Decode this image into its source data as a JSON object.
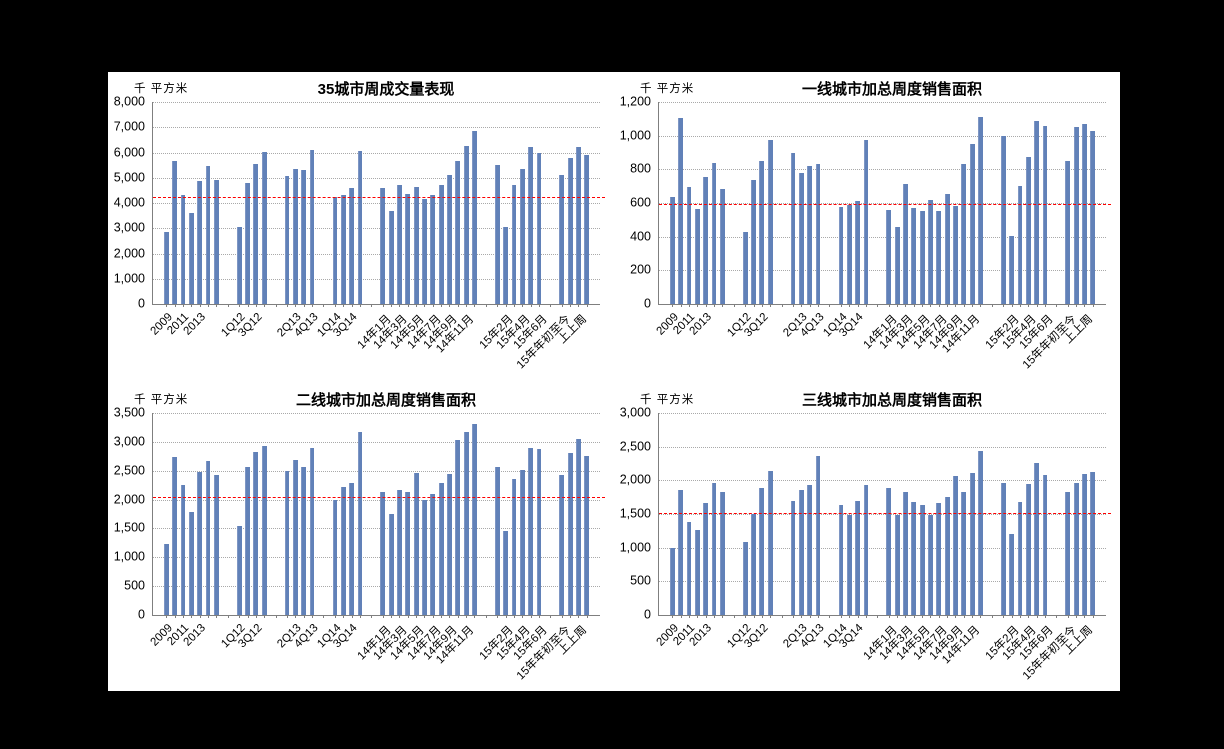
{
  "page": {
    "background": "#000000",
    "canvas_background": "#FFFFFF"
  },
  "colors": {
    "bar": "#6181B8",
    "reference_line": "#FE0000",
    "gridline": "#A9A9A9",
    "axis": "#7F7F7F",
    "text": "#000000"
  },
  "chart_data": [
    {
      "type": "bar",
      "title": "35城市周成交量表现",
      "ylabel": "千 平方米",
      "xlabel": "",
      "ylim": [
        0,
        8000
      ],
      "ytick_step": 1000,
      "yticks": [
        "8,000",
        "7,000",
        "6,000",
        "5,000",
        "4,000",
        "3,000",
        "2,000",
        "1,000",
        "0"
      ],
      "ref_line": 4200,
      "grid": true,
      "legend": null,
      "groups": [
        {
          "bars": [
            {
              "label": "2009",
              "value": 2850
            },
            {
              "label": "",
              "value": 5680
            },
            {
              "label": "2011",
              "value": 4320
            },
            {
              "label": "",
              "value": 3620
            },
            {
              "label": "2013",
              "value": 4880
            },
            {
              "label": "",
              "value": 5450
            },
            {
              "label": "",
              "value": 4930
            }
          ]
        },
        {
          "bars": [
            {
              "label": "1Q12",
              "value": 3060
            },
            {
              "label": "",
              "value": 4800
            },
            {
              "label": "3Q12",
              "value": 5550
            },
            {
              "label": "",
              "value": 6030
            }
          ]
        },
        {
          "bars": [
            {
              "label": "",
              "value": 5080
            },
            {
              "label": "2Q13",
              "value": 5330
            },
            {
              "label": "",
              "value": 5310
            },
            {
              "label": "4Q13",
              "value": 6080
            }
          ]
        },
        {
          "bars": [
            {
              "label": "1Q14",
              "value": 4230
            },
            {
              "label": "",
              "value": 4300
            },
            {
              "label": "3Q14",
              "value": 4580
            },
            {
              "label": "",
              "value": 6060
            }
          ]
        },
        {
          "bars": [
            {
              "label": "14年1月",
              "value": 4600
            },
            {
              "label": "",
              "value": 3700
            },
            {
              "label": "14年3月",
              "value": 4700
            },
            {
              "label": "",
              "value": 4370
            },
            {
              "label": "14年5月",
              "value": 4650
            },
            {
              "label": "",
              "value": 4150
            },
            {
              "label": "14年7月",
              "value": 4330
            },
            {
              "label": "",
              "value": 4700
            },
            {
              "label": "14年9月",
              "value": 5100
            },
            {
              "label": "",
              "value": 5680
            },
            {
              "label": "14年11月",
              "value": 6250
            },
            {
              "label": "",
              "value": 6870
            }
          ]
        },
        {
          "bars": [
            {
              "label": "",
              "value": 5520
            },
            {
              "label": "15年2月",
              "value": 3060
            },
            {
              "label": "",
              "value": 4720
            },
            {
              "label": "15年4月",
              "value": 5330
            },
            {
              "label": "",
              "value": 6200
            },
            {
              "label": "15年6月",
              "value": 6000
            }
          ]
        },
        {
          "bars": [
            {
              "label": "15年年初至今",
              "value": 5100
            },
            {
              "label": "",
              "value": 5800
            },
            {
              "label": "上上周",
              "value": 6220
            },
            {
              "label": "",
              "value": 5900
            }
          ]
        }
      ]
    },
    {
      "type": "bar",
      "title": "一线城市加总周度销售面积",
      "ylabel": "千 平方米",
      "xlabel": "",
      "ylim": [
        0,
        1200
      ],
      "ytick_step": 200,
      "yticks": [
        "1,200",
        "1,000",
        "800",
        "600",
        "400",
        "200",
        "0"
      ],
      "ref_line": 588,
      "grid": true,
      "legend": null,
      "groups": [
        {
          "bars": [
            {
              "label": "2009",
              "value": 635
            },
            {
              "label": "",
              "value": 1105
            },
            {
              "label": "2011",
              "value": 695
            },
            {
              "label": "",
              "value": 565
            },
            {
              "label": "2013",
              "value": 755
            },
            {
              "label": "",
              "value": 835
            },
            {
              "label": "",
              "value": 685
            }
          ]
        },
        {
          "bars": [
            {
              "label": "1Q12",
              "value": 430
            },
            {
              "label": "",
              "value": 735
            },
            {
              "label": "3Q12",
              "value": 850
            },
            {
              "label": "",
              "value": 975
            }
          ]
        },
        {
          "bars": [
            {
              "label": "",
              "value": 900
            },
            {
              "label": "2Q13",
              "value": 780
            },
            {
              "label": "",
              "value": 820
            },
            {
              "label": "4Q13",
              "value": 830
            }
          ]
        },
        {
          "bars": [
            {
              "label": "1Q14",
              "value": 575
            },
            {
              "label": "",
              "value": 590
            },
            {
              "label": "3Q14",
              "value": 610
            },
            {
              "label": "",
              "value": 975
            }
          ]
        },
        {
          "bars": [
            {
              "label": "14年1月",
              "value": 560
            },
            {
              "label": "",
              "value": 460
            },
            {
              "label": "14年3月",
              "value": 710
            },
            {
              "label": "",
              "value": 570
            },
            {
              "label": "14年5月",
              "value": 555
            },
            {
              "label": "",
              "value": 615
            },
            {
              "label": "14年7月",
              "value": 555
            },
            {
              "label": "",
              "value": 655
            },
            {
              "label": "14年9月",
              "value": 585
            },
            {
              "label": "",
              "value": 830
            },
            {
              "label": "14年11月",
              "value": 950
            },
            {
              "label": "",
              "value": 1110
            }
          ]
        },
        {
          "bars": [
            {
              "label": "",
              "value": 1000
            },
            {
              "label": "15年2月",
              "value": 405
            },
            {
              "label": "",
              "value": 700
            },
            {
              "label": "15年4月",
              "value": 875
            },
            {
              "label": "",
              "value": 1085
            },
            {
              "label": "15年6月",
              "value": 1055
            }
          ]
        },
        {
          "bars": [
            {
              "label": "15年年初至今",
              "value": 850
            },
            {
              "label": "",
              "value": 1050
            },
            {
              "label": "上上周",
              "value": 1070
            },
            {
              "label": "",
              "value": 1030
            }
          ]
        }
      ]
    },
    {
      "type": "bar",
      "title": "二线城市加总周度销售面积",
      "ylabel": "千 平方米",
      "xlabel": "",
      "ylim": [
        0,
        3500
      ],
      "ytick_step": 500,
      "yticks": [
        "3,500",
        "3,000",
        "2,500",
        "2,000",
        "1,500",
        "1,000",
        "500",
        "0"
      ],
      "ref_line": 2020,
      "grid": true,
      "legend": null,
      "groups": [
        {
          "bars": [
            {
              "label": "2009",
              "value": 1230
            },
            {
              "label": "",
              "value": 2740
            },
            {
              "label": "2011",
              "value": 2260
            },
            {
              "label": "",
              "value": 1780
            },
            {
              "label": "2013",
              "value": 2480
            },
            {
              "label": "",
              "value": 2670
            },
            {
              "label": "",
              "value": 2420
            }
          ]
        },
        {
          "bars": [
            {
              "label": "1Q12",
              "value": 1550
            },
            {
              "label": "",
              "value": 2560
            },
            {
              "label": "3Q12",
              "value": 2820
            },
            {
              "label": "",
              "value": 2920
            }
          ]
        },
        {
          "bars": [
            {
              "label": "",
              "value": 2500
            },
            {
              "label": "2Q13",
              "value": 2690
            },
            {
              "label": "",
              "value": 2560
            },
            {
              "label": "4Q13",
              "value": 2890
            }
          ]
        },
        {
          "bars": [
            {
              "label": "1Q14",
              "value": 2000
            },
            {
              "label": "",
              "value": 2210
            },
            {
              "label": "3Q14",
              "value": 2280
            },
            {
              "label": "",
              "value": 3170
            }
          ]
        },
        {
          "bars": [
            {
              "label": "14年1月",
              "value": 2140
            },
            {
              "label": "",
              "value": 1750
            },
            {
              "label": "14年3月",
              "value": 2170
            },
            {
              "label": "",
              "value": 2140
            },
            {
              "label": "14年5月",
              "value": 2460
            },
            {
              "label": "",
              "value": 2000
            },
            {
              "label": "14年7月",
              "value": 2100
            },
            {
              "label": "",
              "value": 2280
            },
            {
              "label": "14年9月",
              "value": 2440
            },
            {
              "label": "",
              "value": 3040
            },
            {
              "label": "14年11月",
              "value": 3170
            },
            {
              "label": "",
              "value": 3310
            }
          ]
        },
        {
          "bars": [
            {
              "label": "",
              "value": 2560
            },
            {
              "label": "15年2月",
              "value": 1460
            },
            {
              "label": "",
              "value": 2350
            },
            {
              "label": "15年4月",
              "value": 2510
            },
            {
              "label": "",
              "value": 2890
            },
            {
              "label": "15年6月",
              "value": 2870
            }
          ]
        },
        {
          "bars": [
            {
              "label": "15年年初至今",
              "value": 2420
            },
            {
              "label": "",
              "value": 2800
            },
            {
              "label": "上上周",
              "value": 3050
            },
            {
              "label": "",
              "value": 2760
            }
          ]
        }
      ]
    },
    {
      "type": "bar",
      "title": "三线城市加总周度销售面积",
      "ylabel": "千 平方米",
      "xlabel": "",
      "ylim": [
        0,
        3000
      ],
      "ytick_step": 500,
      "yticks": [
        "3,000",
        "2,500",
        "2,000",
        "1,500",
        "1,000",
        "500",
        "0"
      ],
      "ref_line": 1500,
      "grid": true,
      "legend": null,
      "groups": [
        {
          "bars": [
            {
              "label": "2009",
              "value": 1000
            },
            {
              "label": "",
              "value": 1860
            },
            {
              "label": "2011",
              "value": 1380
            },
            {
              "label": "",
              "value": 1270
            },
            {
              "label": "2013",
              "value": 1660
            },
            {
              "label": "",
              "value": 1960
            },
            {
              "label": "",
              "value": 1830
            }
          ]
        },
        {
          "bars": [
            {
              "label": "1Q12",
              "value": 1090
            },
            {
              "label": "",
              "value": 1500
            },
            {
              "label": "3Q12",
              "value": 1880
            },
            {
              "label": "",
              "value": 2140
            }
          ]
        },
        {
          "bars": [
            {
              "label": "",
              "value": 1690
            },
            {
              "label": "2Q13",
              "value": 1860
            },
            {
              "label": "",
              "value": 1930
            },
            {
              "label": "4Q13",
              "value": 2360
            }
          ]
        },
        {
          "bars": [
            {
              "label": "1Q14",
              "value": 1640
            },
            {
              "label": "",
              "value": 1480
            },
            {
              "label": "3Q14",
              "value": 1700
            },
            {
              "label": "",
              "value": 1930
            }
          ]
        },
        {
          "bars": [
            {
              "label": "14年1月",
              "value": 1890
            },
            {
              "label": "",
              "value": 1480
            },
            {
              "label": "14年3月",
              "value": 1820
            },
            {
              "label": "",
              "value": 1680
            },
            {
              "label": "14年5月",
              "value": 1630
            },
            {
              "label": "",
              "value": 1480
            },
            {
              "label": "14年7月",
              "value": 1670
            },
            {
              "label": "",
              "value": 1760
            },
            {
              "label": "14年9月",
              "value": 2070
            },
            {
              "label": "",
              "value": 1820
            },
            {
              "label": "14年11月",
              "value": 2110
            },
            {
              "label": "",
              "value": 2430
            }
          ]
        },
        {
          "bars": [
            {
              "label": "",
              "value": 1960
            },
            {
              "label": "15年2月",
              "value": 1200
            },
            {
              "label": "",
              "value": 1680
            },
            {
              "label": "15年4月",
              "value": 1950
            },
            {
              "label": "",
              "value": 2260
            },
            {
              "label": "15年6月",
              "value": 2080
            }
          ]
        },
        {
          "bars": [
            {
              "label": "15年年初至今",
              "value": 1830
            },
            {
              "label": "",
              "value": 1960
            },
            {
              "label": "上上周",
              "value": 2100
            },
            {
              "label": "",
              "value": 2130
            }
          ]
        }
      ]
    }
  ]
}
